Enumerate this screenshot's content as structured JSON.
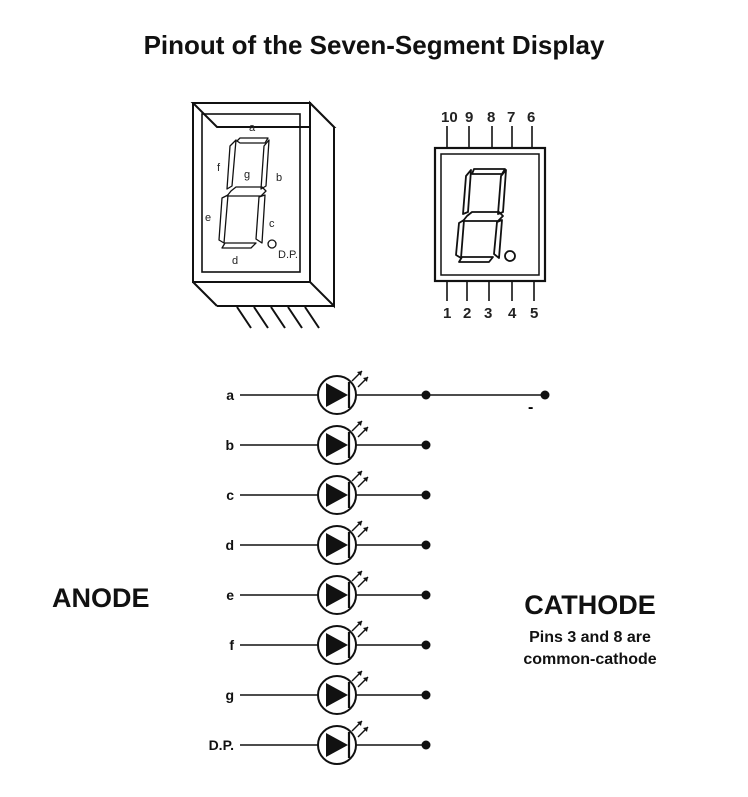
{
  "title": "Pinout of the Seven-Segment Display",
  "labels": {
    "anode": "ANODE",
    "cathode": "CATHODE",
    "note_line1": "Pins 3 and 8 are",
    "note_line2": "common-cathode",
    "minus": "-"
  },
  "segment_labels": {
    "a": "a",
    "b": "b",
    "c": "c",
    "d": "d",
    "e": "e",
    "f": "f",
    "g": "g",
    "dp": "D.P."
  },
  "pins": {
    "top": [
      "10",
      "9",
      "8",
      "7",
      "6"
    ],
    "bottom": [
      "1",
      "2",
      "3",
      "4",
      "5"
    ]
  },
  "rows": [
    "a",
    "b",
    "c",
    "d",
    "e",
    "f",
    "g",
    "D.P."
  ]
}
